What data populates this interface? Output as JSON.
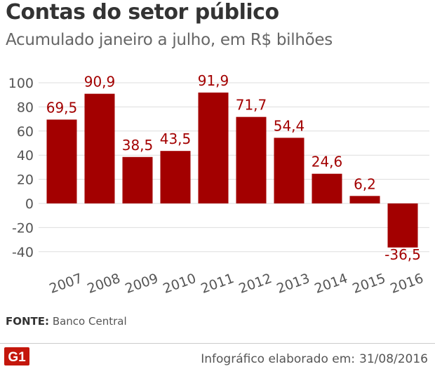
{
  "header": {
    "title": "Contas do setor público",
    "subtitle": "Acumulado janeiro a julho, em R$ bilhões"
  },
  "source": {
    "label": "FONTE:",
    "value": "Banco Central"
  },
  "footer": {
    "logo_text": "G1",
    "credit_label": "Infográfico elaborado em:",
    "credit_date": "31/08/2016"
  },
  "colors": {
    "bar": "#a30000",
    "label": "#a30000",
    "axis_text": "#555555",
    "grid": "#dddddd"
  },
  "chart_data": {
    "type": "bar",
    "title": "Contas do setor público",
    "subtitle": "Acumulado janeiro a julho, em R$ bilhões",
    "categories": [
      "2007",
      "2008",
      "2009",
      "2010",
      "2011",
      "2012",
      "2013",
      "2014",
      "2015",
      "2016"
    ],
    "values": [
      69.5,
      90.9,
      38.5,
      43.5,
      91.9,
      71.7,
      54.4,
      24.6,
      6.2,
      -36.5
    ],
    "value_labels": [
      "69,5",
      "90,9",
      "38,5",
      "43,5",
      "91,9",
      "71,7",
      "54,4",
      "24,6",
      "6,2",
      "-36,5"
    ],
    "yticks": [
      100,
      80,
      60,
      40,
      20,
      0,
      -20,
      -40
    ],
    "ylim": [
      -50,
      105
    ],
    "grid": true
  }
}
